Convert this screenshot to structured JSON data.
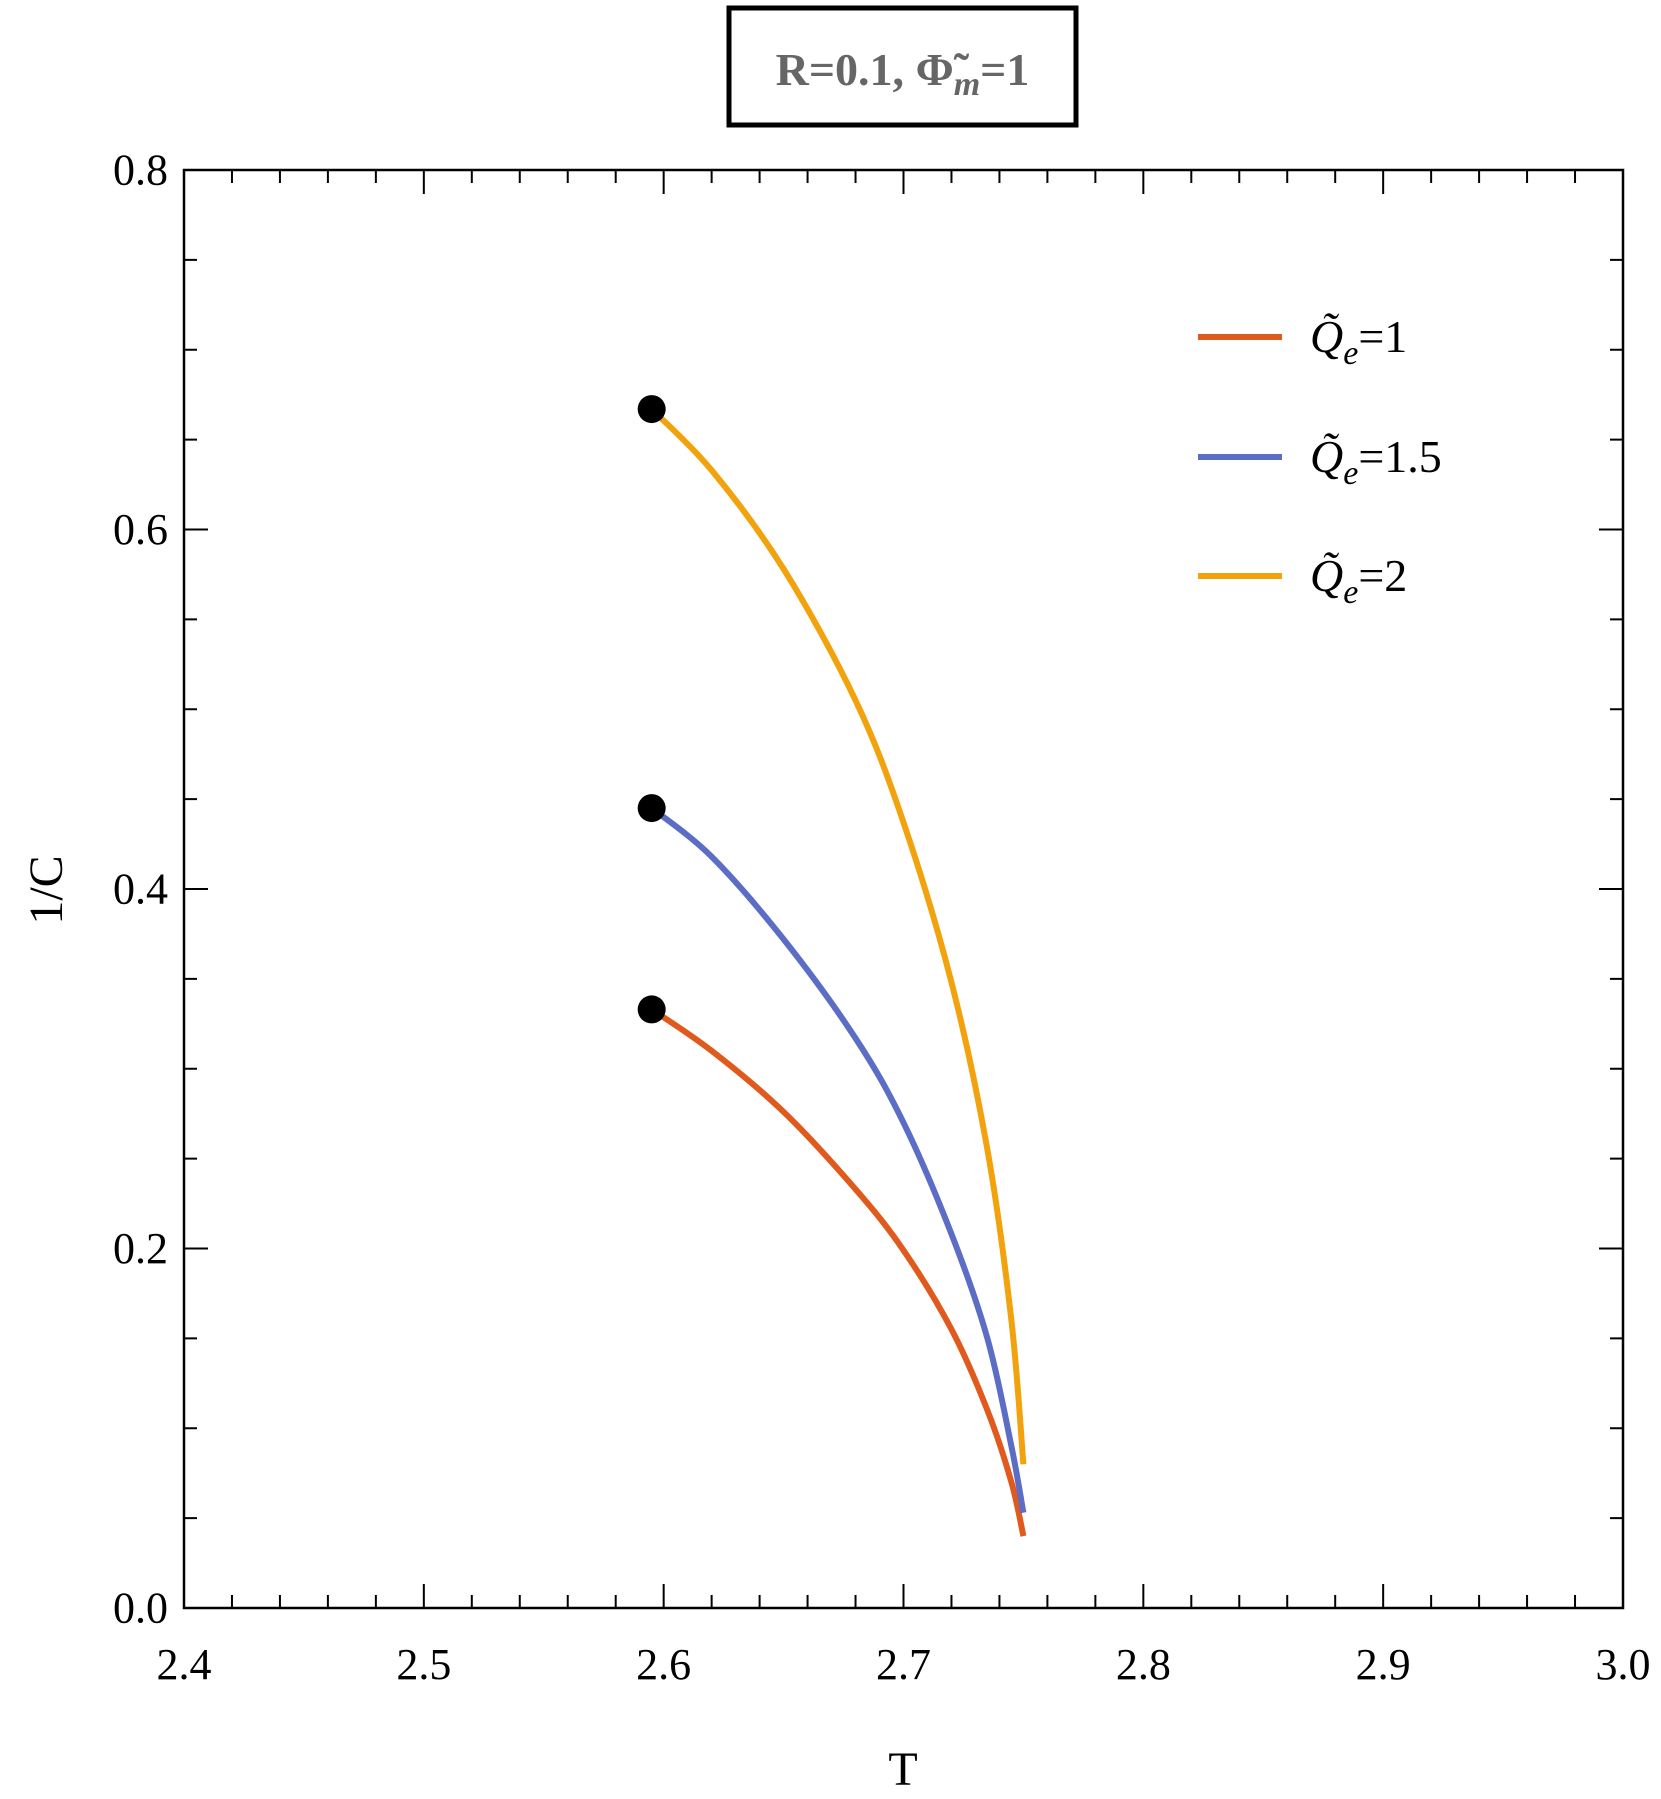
{
  "chart_data": {
    "type": "line",
    "title": "R=0.1, Φ̃m=1",
    "title_parts": {
      "lead": "R=0.1, ",
      "symbol": "Φ̃",
      "sub": "m",
      "tail": "=1"
    },
    "xlabel": "T",
    "ylabel": "1/C",
    "xlim": [
      2.4,
      3.0
    ],
    "ylim": [
      0.0,
      0.8
    ],
    "x_ticks": [
      "2.4",
      "2.5",
      "2.6",
      "2.7",
      "2.8",
      "2.9",
      "3.0"
    ],
    "y_ticks": [
      "0.0",
      "0.2",
      "0.4",
      "0.6",
      "0.8"
    ],
    "grid": false,
    "legend_position": "top-right",
    "series": [
      {
        "name": "Q̃e=1",
        "label_parts": {
          "symbol": "Q̃",
          "sub": "e",
          "value": "=1"
        },
        "color": "#E05A1E",
        "x": [
          2.595,
          2.62,
          2.65,
          2.68,
          2.7,
          2.72,
          2.735,
          2.745,
          2.75
        ],
        "y": [
          0.333,
          0.31,
          0.276,
          0.233,
          0.199,
          0.155,
          0.11,
          0.07,
          0.04
        ]
      },
      {
        "name": "Q̃e=1.5",
        "label_parts": {
          "symbol": "Q̃",
          "sub": "e",
          "value": "=1.5"
        },
        "color": "#5B6DC4",
        "x": [
          2.595,
          2.62,
          2.65,
          2.68,
          2.7,
          2.72,
          2.735,
          2.745,
          2.75
        ],
        "y": [
          0.445,
          0.418,
          0.372,
          0.317,
          0.27,
          0.208,
          0.15,
          0.09,
          0.053
        ]
      },
      {
        "name": "Q̃e=2",
        "label_parts": {
          "symbol": "Q̃",
          "sub": "e",
          "value": "=2"
        },
        "color": "#F2A20D",
        "x": [
          2.595,
          2.62,
          2.65,
          2.68,
          2.7,
          2.72,
          2.735,
          2.745,
          2.75
        ],
        "y": [
          0.667,
          0.633,
          0.578,
          0.505,
          0.437,
          0.348,
          0.255,
          0.16,
          0.08
        ]
      }
    ],
    "marker_points": [
      {
        "x": 2.595,
        "y": 0.333
      },
      {
        "x": 2.595,
        "y": 0.445
      },
      {
        "x": 2.595,
        "y": 0.667
      }
    ]
  }
}
